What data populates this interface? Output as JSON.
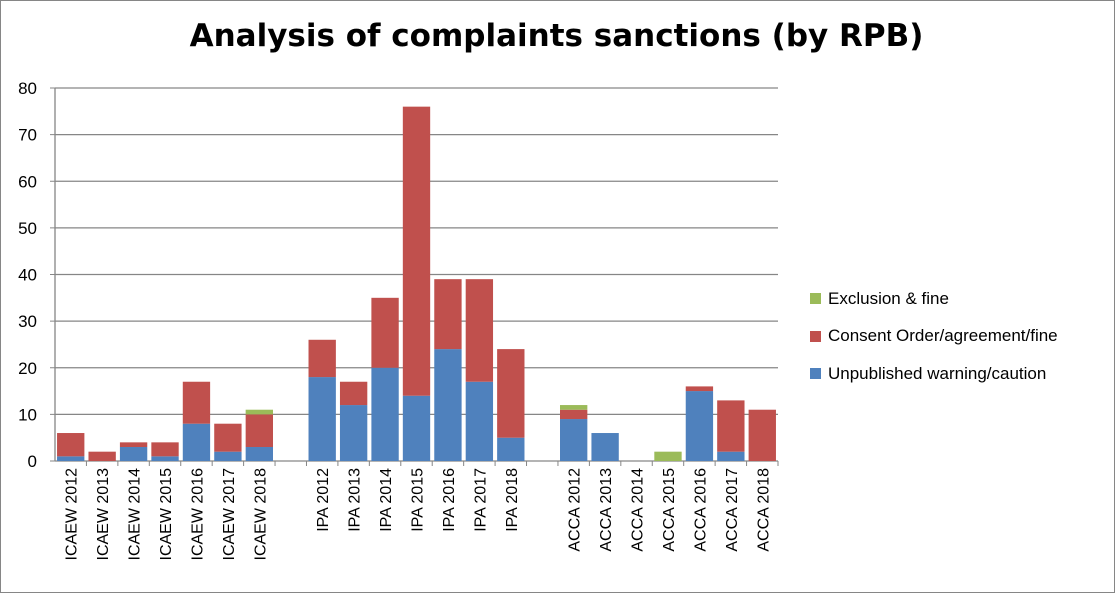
{
  "chart_data": {
    "type": "bar",
    "stacked": true,
    "title": "Analysis of complaints sanctions (by RPB)",
    "ylim": [
      0,
      80
    ],
    "yticks": [
      0,
      10,
      20,
      30,
      40,
      50,
      60,
      70,
      80
    ],
    "grid": true,
    "legend_position": "right",
    "groups": [
      {
        "categories": [
          "ICAEW 2012",
          "ICAEW 2013",
          "ICAEW 2014",
          "ICAEW 2015",
          "ICAEW 2016",
          "ICAEW 2017",
          "ICAEW 2018"
        ],
        "series": [
          {
            "name": "Unpublished warning/caution",
            "values": [
              1,
              0,
              3,
              1,
              8,
              2,
              3
            ]
          },
          {
            "name": "Consent Order/agreement/fine",
            "values": [
              5,
              2,
              1,
              3,
              9,
              6,
              7
            ]
          },
          {
            "name": "Exclusion & fine",
            "values": [
              0,
              0,
              0,
              0,
              0,
              0,
              1
            ]
          }
        ]
      },
      {
        "categories": [
          "IPA 2012",
          "IPA 2013",
          "IPA 2014",
          "IPA 2015",
          "IPA 2016",
          "IPA 2017",
          "IPA 2018"
        ],
        "series": [
          {
            "name": "Unpublished warning/caution",
            "values": [
              18,
              12,
              20,
              14,
              24,
              17,
              5
            ]
          },
          {
            "name": "Consent Order/agreement/fine",
            "values": [
              8,
              5,
              15,
              62,
              15,
              22,
              19
            ]
          },
          {
            "name": "Exclusion & fine",
            "values": [
              0,
              0,
              0,
              0,
              0,
              0,
              0
            ]
          }
        ]
      },
      {
        "categories": [
          "ACCA 2012",
          "ACCA 2013",
          "ACCA 2014",
          "ACCA 2015",
          "ACCA 2016",
          "ACCA 2017",
          "ACCA 2018"
        ],
        "series": [
          {
            "name": "Unpublished warning/caution",
            "values": [
              9,
              6,
              0,
              0,
              15,
              2,
              0
            ]
          },
          {
            "name": "Consent Order/agreement/fine",
            "values": [
              2,
              0,
              0,
              0,
              1,
              11,
              11
            ]
          },
          {
            "name": "Exclusion & fine",
            "values": [
              1,
              0,
              0,
              2,
              0,
              0,
              0
            ]
          }
        ]
      }
    ],
    "legend": [
      {
        "name": "Exclusion & fine",
        "color": "#9BBB59"
      },
      {
        "name": "Consent Order/agreement/fine",
        "color": "#C0504D"
      },
      {
        "name": "Unpublished warning/caution",
        "color": "#4F81BD"
      }
    ],
    "colors": {
      "Unpublished warning/caution": "#4F81BD",
      "Consent Order/agreement/fine": "#C0504D",
      "Exclusion & fine": "#9BBB59"
    }
  }
}
